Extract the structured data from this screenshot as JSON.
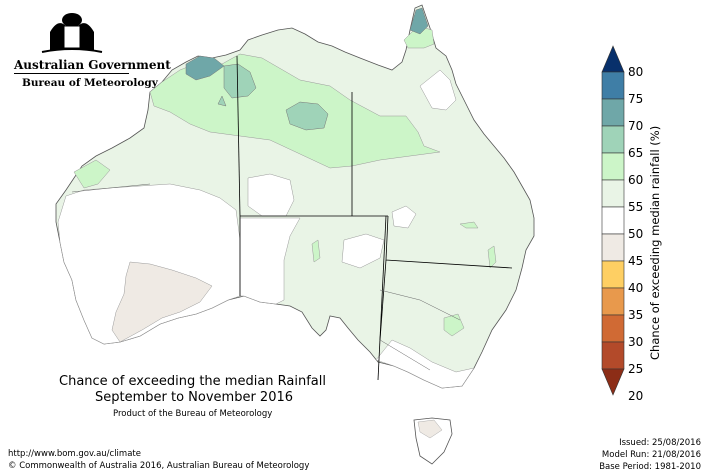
{
  "header": {
    "org_name": "Australian Government",
    "agency": "Bureau of Meteorology"
  },
  "map": {
    "title_line1": "Chance of exceeding the median Rainfall",
    "title_line2": "September to November 2016",
    "product": "Product of the Bureau of Meteorology",
    "legend_title": "Chance of exceeding median rainfall (%)",
    "legend_bins": [
      {
        "label": "80",
        "color": "#08306b"
      },
      {
        "label": "75",
        "color": "#3f7ea6"
      },
      {
        "label": "70",
        "color": "#6fa7a8"
      },
      {
        "label": "65",
        "color": "#9fd3b8"
      },
      {
        "label": "60",
        "color": "#ccf5c8"
      },
      {
        "label": "55",
        "color": "#e9f4e6"
      },
      {
        "label": "50",
        "color": "#ffffff"
      },
      {
        "label": "45",
        "color": "#efeae4"
      },
      {
        "label": "40",
        "color": "#fecf63"
      },
      {
        "label": "35",
        "color": "#e8994c"
      },
      {
        "label": "30",
        "color": "#d06a34"
      },
      {
        "label": "25",
        "color": "#b34a2a"
      },
      {
        "label": "20",
        "color": "#8c2d17"
      }
    ]
  },
  "footer": {
    "url": "http://www.bom.gov.au/climate",
    "copyright": "© Commonwealth of Australia 2016, Australian Bureau of Meteorology",
    "issued": "Issued: 25/08/2016",
    "model_run": "Model Run: 21/08/2016",
    "base_period": "Base Period: 1981-2010"
  }
}
